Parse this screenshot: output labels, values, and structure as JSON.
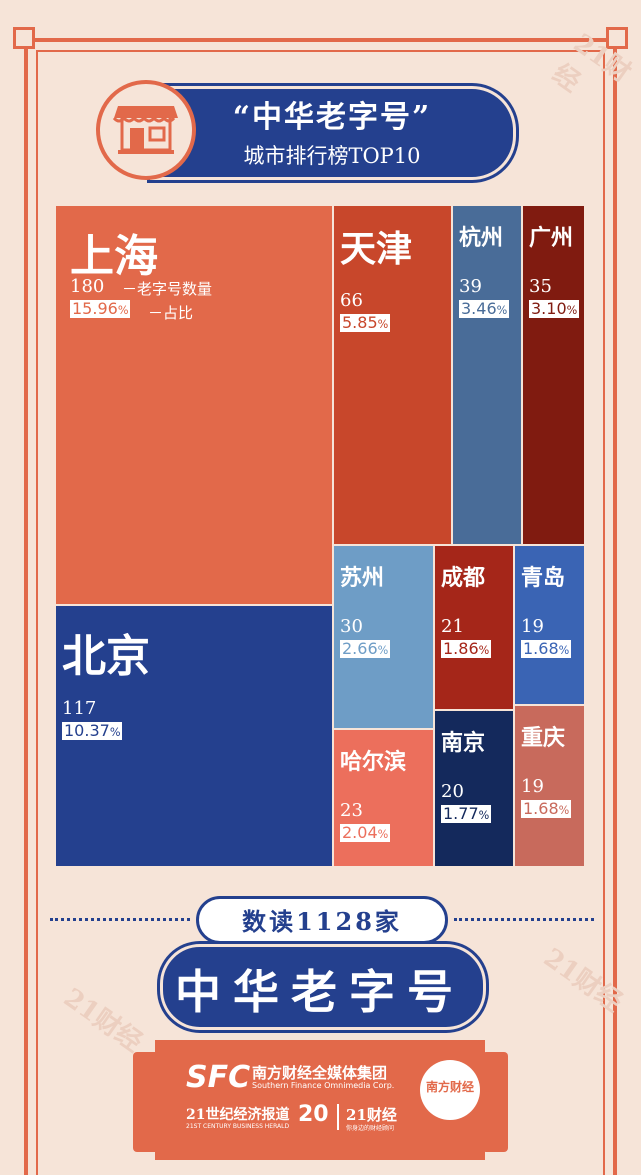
{
  "header": {
    "title": "“中华老字号”",
    "subtitle": "城市排行榜TOP10"
  },
  "chart_data": {
    "type": "treemap",
    "title": "“中华老字号”城市排行榜TOP10",
    "count_label": "－老字号数量",
    "share_label": "－占比",
    "items": [
      {
        "name": "上海",
        "value": 180,
        "share": "15.96",
        "color": "#e2694a"
      },
      {
        "name": "北京",
        "value": 117,
        "share": "10.37",
        "color": "#24408e"
      },
      {
        "name": "天津",
        "value": 66,
        "share": "5.85",
        "color": "#c8472b"
      },
      {
        "name": "杭州",
        "value": 39,
        "share": "3.46",
        "color": "#496c98"
      },
      {
        "name": "广州",
        "value": 35,
        "share": "3.10",
        "color": "#801b10"
      },
      {
        "name": "苏州",
        "value": 30,
        "share": "2.66",
        "color": "#6e9dc6"
      },
      {
        "name": "哈尔滨",
        "value": 23,
        "share": "2.04",
        "color": "#ec6f5c"
      },
      {
        "name": "成都",
        "value": 21,
        "share": "1.86",
        "color": "#a52619"
      },
      {
        "name": "南京",
        "value": 20,
        "share": "1.77",
        "color": "#14295c"
      },
      {
        "name": "青岛",
        "value": 19,
        "share": "1.68",
        "color": "#3a64b4"
      },
      {
        "name": "重庆",
        "value": 19,
        "share": "1.68",
        "color": "#c86a5c"
      }
    ],
    "pct_sign": "%"
  },
  "summary": {
    "line1": "数读1128家",
    "line2": "中华老字号"
  },
  "footer": {
    "sfc": "SFC",
    "group_cn": "南方财经全媒体集团",
    "group_en": "Southern Finance Omnimedia Corp.",
    "paper_cn": "21世纪经济报道",
    "paper_en": "21ST CENTURY BUSINESS HERALD",
    "anniv": "20",
    "brand": "21财经",
    "brand_sub": "你身边的财经顾问",
    "seal": "南方财经"
  },
  "watermark": "21财经"
}
